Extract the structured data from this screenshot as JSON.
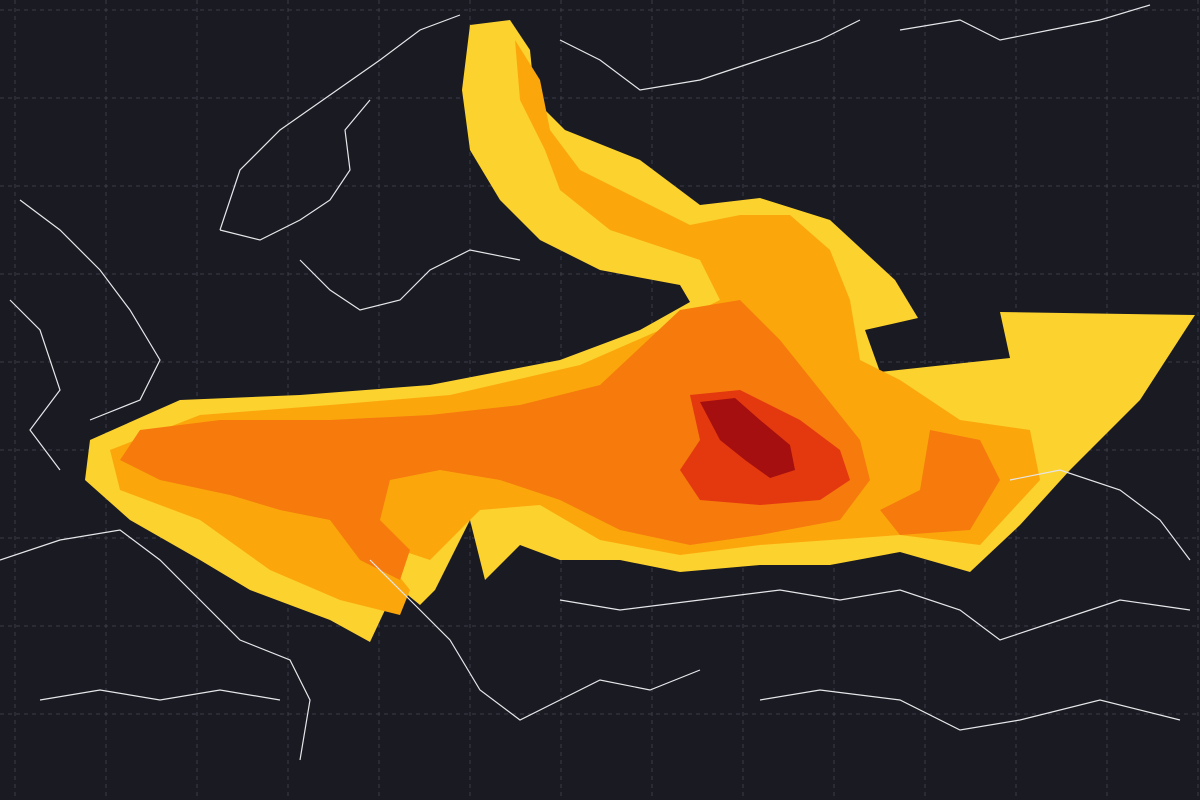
{
  "map": {
    "background_color": "#191a22",
    "grid_color": "#3a3c48",
    "coastline_color": "#e6e6ea",
    "plume_levels": [
      {
        "level": 1,
        "color": "#fcd22e"
      },
      {
        "level": 2,
        "color": "#fba70c"
      },
      {
        "level": 3,
        "color": "#f67a0c"
      },
      {
        "level": 4,
        "color": "#e4380f"
      },
      {
        "level": 5,
        "color": "#a50f0f"
      }
    ]
  }
}
